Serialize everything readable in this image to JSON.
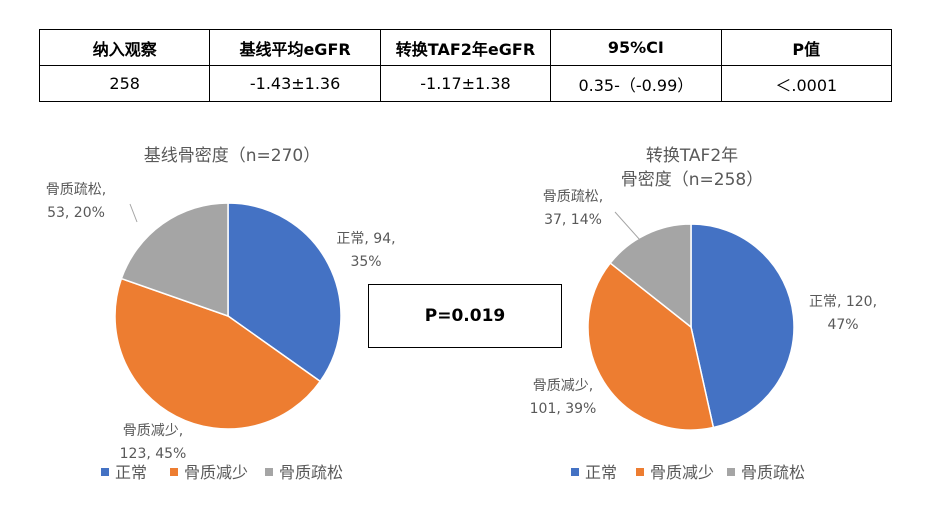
{
  "table": {
    "headers": [
      "纳入观察",
      "基线平均eGFR",
      "转换TAF2年eGFR",
      "95%CI",
      "P值"
    ],
    "row": [
      "258",
      "-1.43±1.36",
      "-1.17±1.38",
      "0.35-（-0.99）",
      "＜.0001"
    ]
  },
  "comparison_label": "P=0.019",
  "chart_data": [
    {
      "type": "pie",
      "title": "基线骨密度（n=270）",
      "categories": [
        "正常",
        "骨质减少",
        "骨质疏松"
      ],
      "values": [
        94,
        123,
        53
      ],
      "percents": [
        "35%",
        "45%",
        "20%"
      ],
      "data_labels": [
        [
          "正常, 94,",
          "35%"
        ],
        [
          "骨质减少,",
          "123, 45%"
        ],
        [
          "骨质疏松,",
          "53, 20%"
        ]
      ],
      "colors": [
        "#4472C4",
        "#ED7D31",
        "#A5A5A5"
      ],
      "legend": [
        "正常",
        "骨质减少",
        "骨质疏松"
      ],
      "legend_position": "bottom"
    },
    {
      "type": "pie",
      "title_lines": [
        "转换TAF2年",
        "骨密度（n=258）"
      ],
      "categories": [
        "正常",
        "骨质减少",
        "骨质疏松"
      ],
      "values": [
        120,
        101,
        37
      ],
      "percents": [
        "47%",
        "39%",
        "14%"
      ],
      "data_labels": [
        [
          "正常, 120,",
          "47%"
        ],
        [
          "骨质减少,",
          "101, 39%"
        ],
        [
          "骨质疏松,",
          "37, 14%"
        ]
      ],
      "colors": [
        "#4472C4",
        "#ED7D31",
        "#A5A5A5"
      ],
      "legend": [
        "正常",
        "骨质减少",
        "骨质疏松"
      ],
      "legend_position": "bottom"
    }
  ]
}
